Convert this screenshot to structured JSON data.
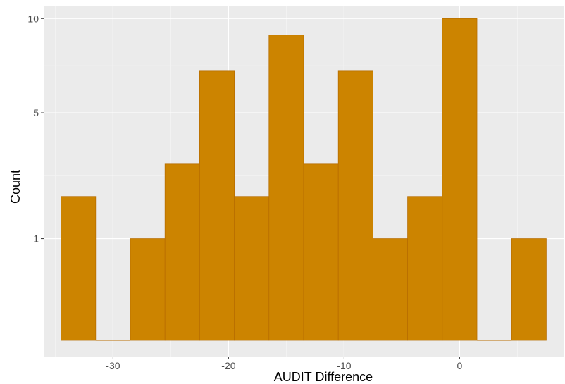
{
  "chart_data": {
    "type": "bar",
    "title": "",
    "xlabel": "AUDIT Difference",
    "ylabel": "Count",
    "bin_width": 3,
    "bins": [
      {
        "x0": -34.5,
        "x1": -31.5,
        "count": 2
      },
      {
        "x0": -31.5,
        "x1": -28.5,
        "count": 0
      },
      {
        "x0": -28.5,
        "x1": -25.5,
        "count": 1
      },
      {
        "x0": -25.5,
        "x1": -22.5,
        "count": 3
      },
      {
        "x0": -22.5,
        "x1": -19.5,
        "count": 7
      },
      {
        "x0": -19.5,
        "x1": -16.5,
        "count": 2
      },
      {
        "x0": -16.5,
        "x1": -13.5,
        "count": 9
      },
      {
        "x0": -13.5,
        "x1": -10.5,
        "count": 3
      },
      {
        "x0": -10.5,
        "x1": -7.5,
        "count": 7
      },
      {
        "x0": -7.5,
        "x1": -4.5,
        "count": 1
      },
      {
        "x0": -4.5,
        "x1": -1.5,
        "count": 2
      },
      {
        "x0": -1.5,
        "x1": 1.5,
        "count": 10
      },
      {
        "x0": 1.5,
        "x1": 4.5,
        "count": 0
      },
      {
        "x0": 4.5,
        "x1": 7.5,
        "count": 1
      }
    ],
    "x_ticks": [
      -30,
      -20,
      -10,
      0
    ],
    "x_tick_labels": [
      "-30",
      "-20",
      "-10",
      "0"
    ],
    "y_ticks": [
      1,
      5,
      10
    ],
    "y_tick_labels": [
      "1",
      "5",
      "10"
    ],
    "y_scale": "sqrt",
    "xlim": [
      -36,
      9
    ],
    "ylim": [
      0,
      10.5
    ],
    "grid": true,
    "legend": "none",
    "colors": {
      "bar_fill": "#CC8400",
      "bar_outline": "#B86E00",
      "panel_background": "#EBEBEB",
      "grid_major": "#FFFFFF",
      "grid_minor": "#F3F3F3"
    }
  }
}
